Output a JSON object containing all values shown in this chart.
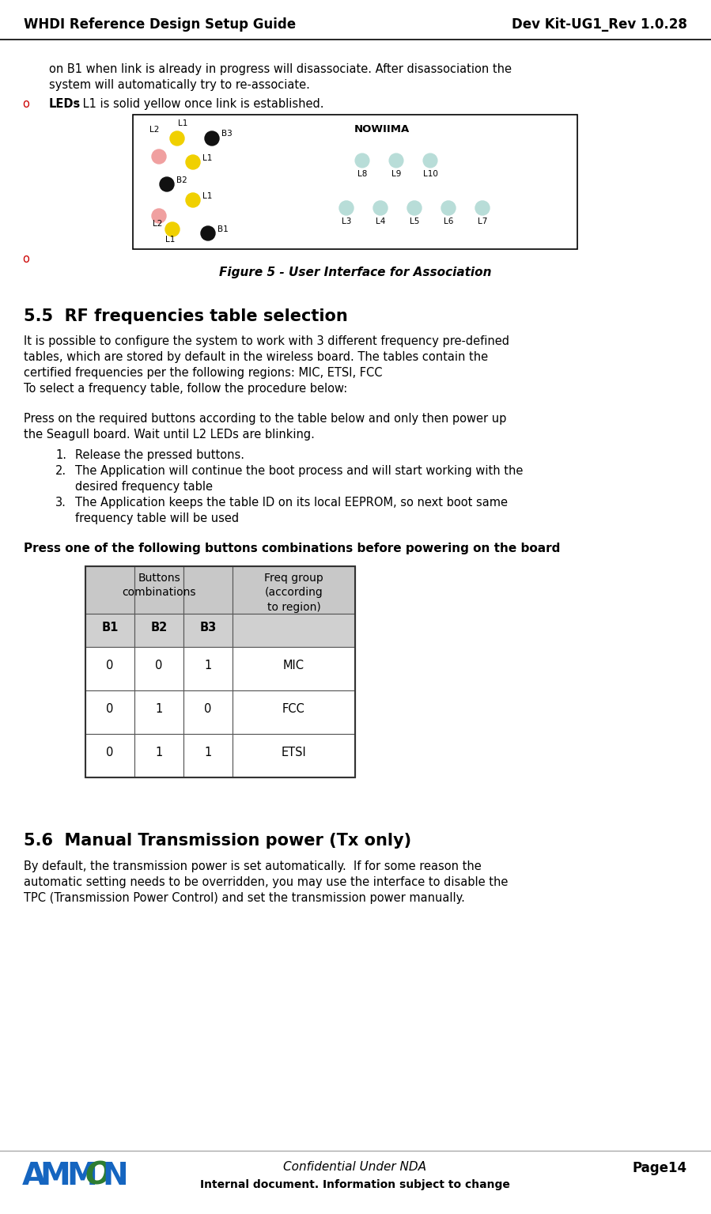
{
  "header_left": "WHDI Reference Design Setup Guide",
  "header_right": "Dev Kit-UG1_Rev 1.0.28",
  "footer_confidential": "Confidential Under NDA",
  "footer_internal": "Internal document. Information subject to change",
  "footer_page": "Page14",
  "bg_color": "#ffffff",
  "body_text_size": 10.5,
  "header_text_size": 12,
  "section_title_size": 15,
  "bold_line_text": "Press one of the following buttons combinations before powering on the board",
  "section_55_title": "5.5  RF frequencies table selection",
  "section_56_title": "5.6  Manual Transmission power (Tx only)",
  "para1_line1": "on B1 when link is already in progress will disassociate. After disassociation the",
  "para1_line2": "system will automatically try to re-associate.",
  "leds_bullet": "o",
  "leds_bold": "LEDs",
  "leds_rest": ": L1 is solid yellow once link is established.",
  "fig_caption": "Figure 5 - User Interface for Association",
  "body55_lines": [
    "It is possible to configure the system to work with 3 different frequency pre-defined",
    "tables, which are stored by default in the wireless board. The tables contain the",
    "certified frequencies per the following regions: MIC, ETSI, FCC",
    "To select a frequency table, follow the procedure below:"
  ],
  "press_line1": "Press on the required buttons according to the table below and only then power up",
  "press_line2": "the Seagull board. Wait until L2 LEDs are blinking.",
  "num_list": [
    [
      "1.",
      "Release the pressed buttons."
    ],
    [
      "2.",
      "The Application will continue the boot process and will start working with the"
    ],
    [
      "",
      "desired frequency table"
    ],
    [
      "3.",
      "The Application keeps the table ID on its local EEPROM, so next boot same"
    ],
    [
      "",
      "frequency table will be used"
    ]
  ],
  "body56_lines": [
    "By default, the transmission power is set automatically.  If for some reason the",
    "automatic setting needs to be overridden, you may use the interface to disable the",
    "TPC (Transmission Power Control) and set the transmission power manually."
  ],
  "table_row_data": [
    [
      "0",
      "0",
      "1",
      "MIC"
    ],
    [
      "0",
      "1",
      "0",
      "FCC"
    ],
    [
      "0",
      "1",
      "1",
      "ETSI"
    ]
  ],
  "header_gray": "#c8c8c8",
  "subheader_gray": "#d0d0d0",
  "table_border": "#555555",
  "yellow_led": "#f0d000",
  "pink_led": "#f0a0a0",
  "black_btn": "#111111",
  "teal_led": "#b8ddd8",
  "amimon_blue": "#1565c0",
  "amimon_green": "#2e7d32",
  "amimon_red": "#c62828",
  "red_bullet": "#cc0000"
}
